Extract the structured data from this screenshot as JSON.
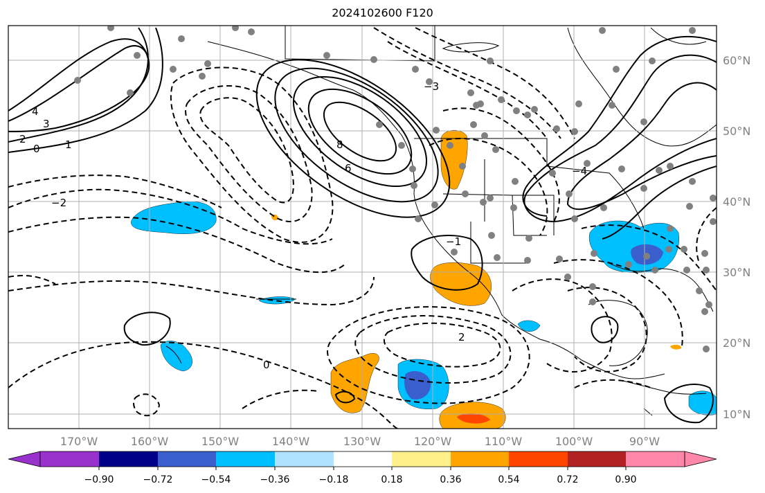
{
  "title": "2024102600 F120",
  "lat_labels": [
    "60°N",
    "50°N",
    "40°N",
    "30°N",
    "20°N",
    "10°N"
  ],
  "lon_labels": [
    "170°W",
    "160°W",
    "150°W",
    "140°W",
    "130°W",
    "120°W",
    "110°W",
    "100°W",
    "90°W"
  ],
  "colorbar": {
    "ticks": [
      "−0.90",
      "−0.72",
      "−0.54",
      "−0.36",
      "−0.18",
      "0.18",
      "0.36",
      "0.54",
      "0.72",
      "0.90"
    ],
    "colors": [
      "#9932cc",
      "#00008b",
      "#3a5fcd",
      "#00bfff",
      "#b0e2ff",
      "#ffffff",
      "#fff08c",
      "#ffa500",
      "#ff4500",
      "#b22222",
      "#ff88aa"
    ]
  },
  "contour_labels": [
    "4",
    "3",
    "2",
    "1",
    "0",
    "8",
    "6",
    "−2",
    "−1",
    "−3",
    "−4",
    "0",
    "2"
  ],
  "colors": {
    "contour": "#000000",
    "axis_labels": "#808080",
    "grid": "#b0b0b0",
    "station": "#808080"
  }
}
